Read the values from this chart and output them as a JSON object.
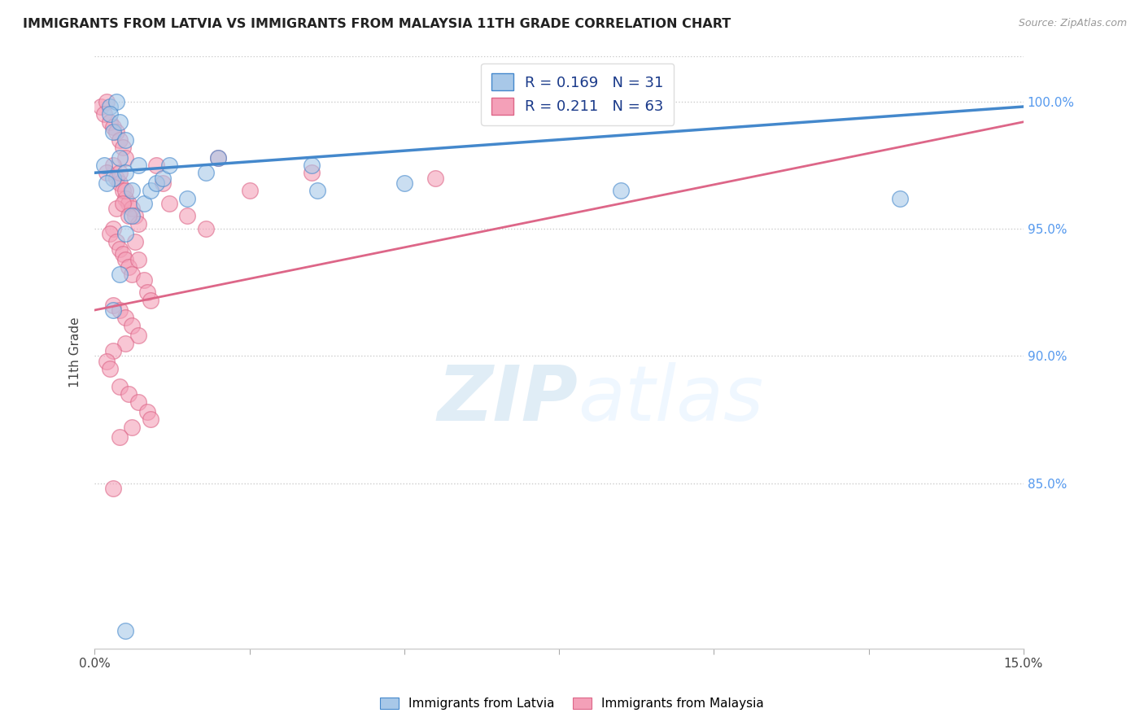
{
  "title": "IMMIGRANTS FROM LATVIA VS IMMIGRANTS FROM MALAYSIA 11TH GRADE CORRELATION CHART",
  "source": "Source: ZipAtlas.com",
  "ylabel": "11th Grade",
  "xlim": [
    0.0,
    15.0
  ],
  "ylim": [
    78.5,
    101.8
  ],
  "R_latvia": 0.169,
  "N_latvia": 31,
  "R_malaysia": 0.211,
  "N_malaysia": 63,
  "color_latvia": "#a8c8e8",
  "color_malaysia": "#f4a0b8",
  "trendline_color_latvia": "#4488cc",
  "trendline_color_malaysia": "#dd6688",
  "watermark_zip": "ZIP",
  "watermark_atlas": "atlas",
  "y_tick_vals": [
    85.0,
    90.0,
    95.0,
    100.0
  ],
  "latvia_x": [
    0.15,
    0.25,
    0.35,
    0.25,
    0.3,
    0.4,
    0.5,
    0.4,
    0.3,
    0.2,
    0.5,
    0.6,
    0.7,
    0.8,
    0.9,
    1.0,
    1.1,
    1.2,
    1.5,
    2.0,
    1.8,
    0.6,
    0.5,
    0.4,
    3.5,
    3.6,
    5.0,
    8.5,
    13.0,
    0.3,
    0.5
  ],
  "latvia_y": [
    97.5,
    99.8,
    100.0,
    99.5,
    98.8,
    99.2,
    98.5,
    97.8,
    97.0,
    96.8,
    97.2,
    96.5,
    97.5,
    96.0,
    96.5,
    96.8,
    97.0,
    97.5,
    96.2,
    97.8,
    97.2,
    95.5,
    94.8,
    93.2,
    97.5,
    96.5,
    96.8,
    96.5,
    96.2,
    91.8,
    79.2
  ],
  "malaysia_x": [
    0.1,
    0.2,
    0.15,
    0.25,
    0.3,
    0.35,
    0.4,
    0.45,
    0.5,
    0.3,
    0.2,
    0.35,
    0.4,
    0.45,
    0.5,
    0.55,
    0.6,
    0.65,
    0.7,
    0.3,
    0.25,
    0.35,
    0.4,
    0.45,
    0.5,
    0.55,
    0.6,
    0.5,
    0.4,
    0.35,
    0.45,
    0.55,
    0.65,
    0.7,
    0.8,
    0.85,
    0.9,
    1.0,
    1.1,
    1.2,
    1.5,
    1.8,
    2.0,
    2.5,
    0.3,
    0.4,
    0.5,
    0.6,
    0.7,
    0.5,
    3.5,
    5.5,
    0.3,
    0.2,
    0.25,
    0.4,
    0.55,
    0.7,
    0.85,
    0.9,
    0.6,
    0.4,
    0.3
  ],
  "malaysia_y": [
    99.8,
    100.0,
    99.5,
    99.2,
    99.0,
    98.8,
    98.5,
    98.2,
    97.8,
    97.5,
    97.2,
    97.0,
    96.8,
    96.5,
    96.2,
    96.0,
    95.8,
    95.5,
    95.2,
    95.0,
    94.8,
    94.5,
    94.2,
    94.0,
    93.8,
    93.5,
    93.2,
    96.5,
    97.2,
    95.8,
    96.0,
    95.5,
    94.5,
    93.8,
    93.0,
    92.5,
    92.2,
    97.5,
    96.8,
    96.0,
    95.5,
    95.0,
    97.8,
    96.5,
    92.0,
    91.8,
    91.5,
    91.2,
    90.8,
    90.5,
    97.2,
    97.0,
    90.2,
    89.8,
    89.5,
    88.8,
    88.5,
    88.2,
    87.8,
    87.5,
    87.2,
    86.8,
    84.8
  ]
}
